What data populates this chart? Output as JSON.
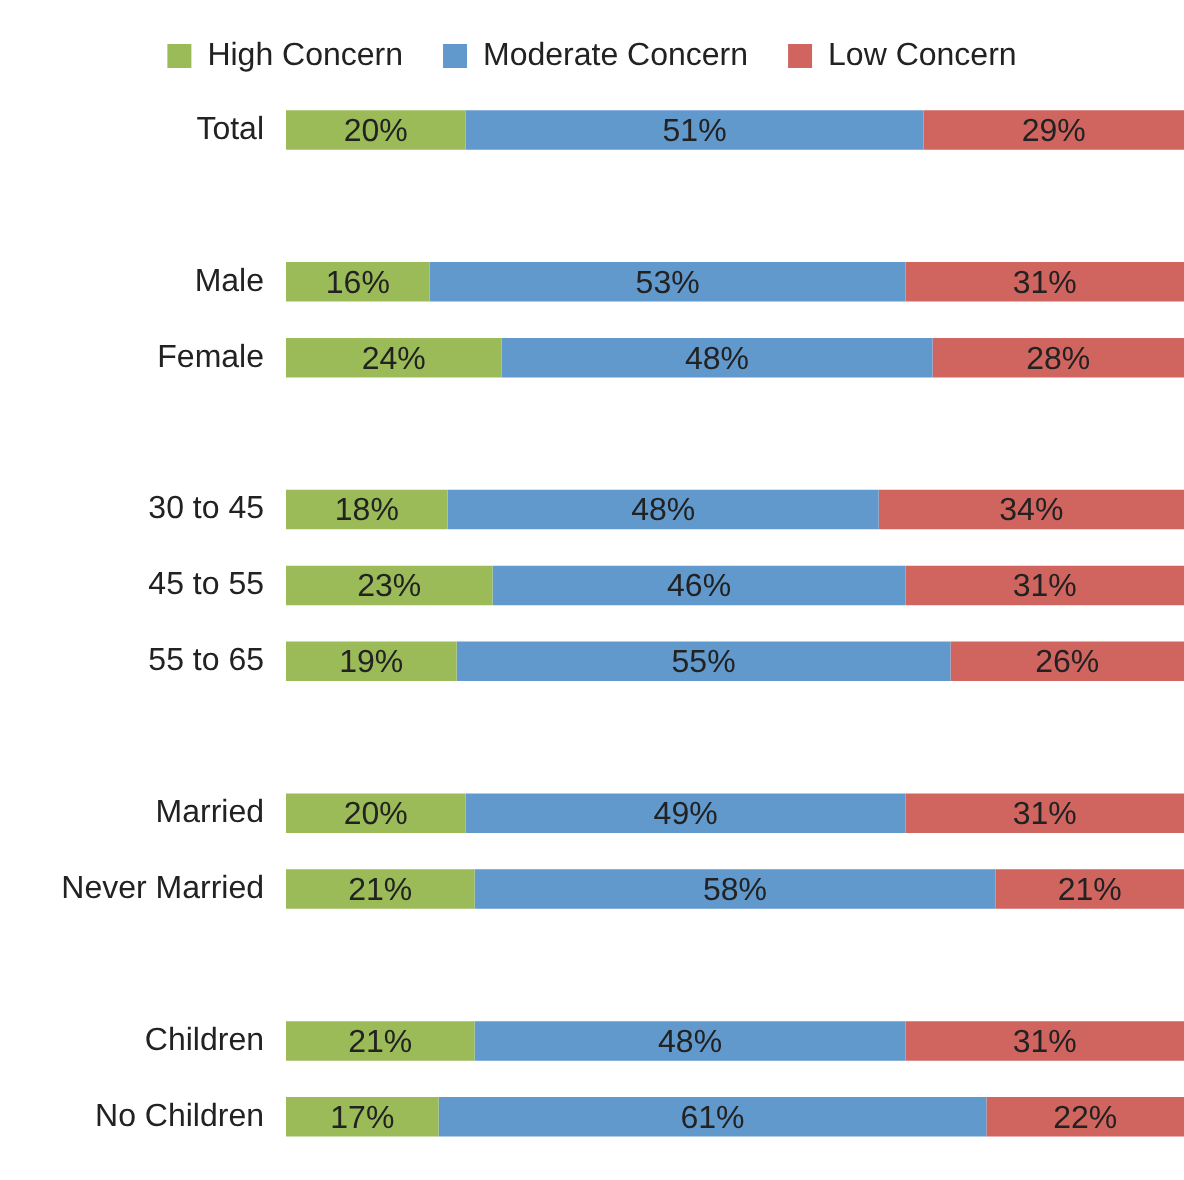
{
  "chart_data": {
    "type": "bar",
    "orientation": "horizontal",
    "stacked": true,
    "categories": [
      "Total",
      null,
      "Male",
      "Female",
      null,
      "30 to 45",
      "45 to 55",
      "55 to 65",
      null,
      "Married",
      "Never Married",
      null,
      "Children",
      "No Children"
    ],
    "series": [
      {
        "name": "High Concern",
        "color": "#9bbb59",
        "values": [
          20,
          null,
          16,
          24,
          null,
          18,
          23,
          19,
          null,
          20,
          21,
          null,
          21,
          17
        ],
        "value_labels": [
          "20%",
          null,
          "16%",
          "24%",
          null,
          "18%",
          "23%",
          "19%",
          null,
          "20%",
          "21%",
          null,
          "21%",
          "17%"
        ]
      },
      {
        "name": "Moderate Concern",
        "color": "#6199cd",
        "values": [
          51,
          null,
          53,
          48,
          null,
          48,
          46,
          55,
          null,
          49,
          58,
          null,
          48,
          61
        ],
        "value_labels": [
          "51%",
          null,
          "53%",
          "48%",
          null,
          "48%",
          "46%",
          "55%",
          null,
          "49%",
          "58%",
          null,
          "48%",
          "61%"
        ]
      },
      {
        "name": "Low Concern",
        "color": "#d06560",
        "values": [
          29,
          null,
          31,
          28,
          null,
          34,
          31,
          26,
          null,
          31,
          21,
          null,
          31,
          22
        ],
        "value_labels": [
          "29%",
          null,
          "31%",
          "28%",
          null,
          "34%",
          "31%",
          "26%",
          null,
          "31%",
          "21%",
          null,
          "31%",
          "22%"
        ]
      }
    ],
    "tick_labels": "y",
    "legend": "top"
  }
}
